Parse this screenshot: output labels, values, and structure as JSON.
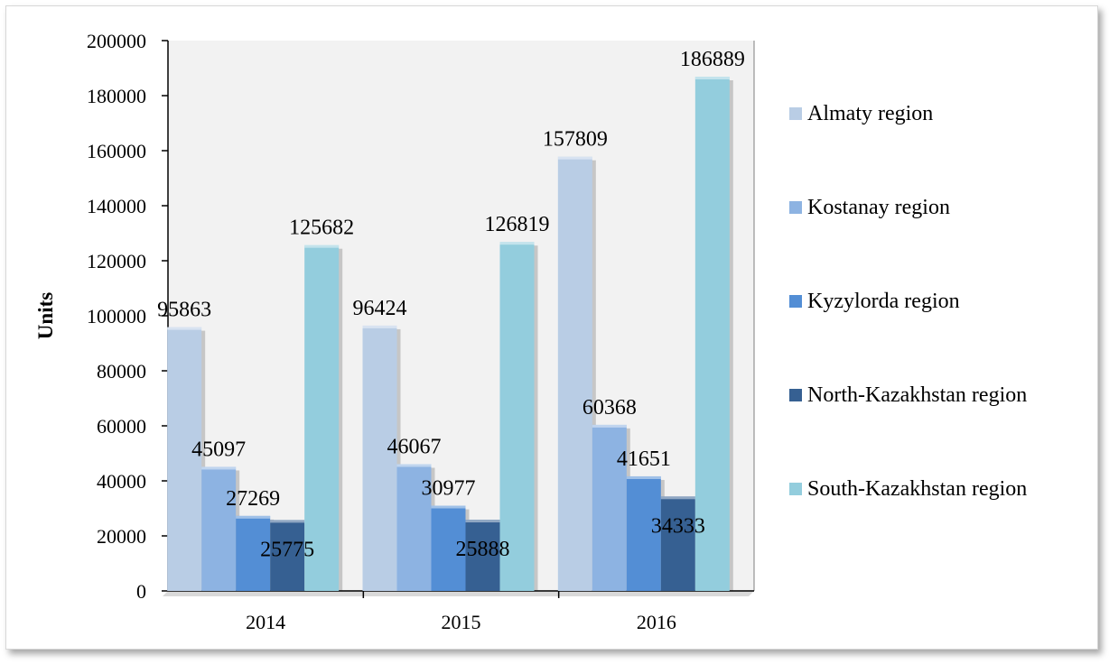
{
  "chart_data": {
    "type": "bar",
    "categories": [
      "2014",
      "2015",
      "2016"
    ],
    "series": [
      {
        "name": "Almaty region",
        "color": "#b9cde5",
        "values": [
          95863,
          96424,
          157809
        ]
      },
      {
        "name": "Kostanay region",
        "color": "#8db3e2",
        "values": [
          45097,
          46067,
          60368
        ]
      },
      {
        "name": "Kyzylorda region",
        "color": "#538ed5",
        "values": [
          27269,
          30977,
          41651
        ]
      },
      {
        "name": "North-Kazakhstan region",
        "color": "#366092",
        "values": [
          25775,
          25888,
          34333
        ]
      },
      {
        "name": "South-Kazakhstan region",
        "color": "#93cddd",
        "values": [
          125682,
          126819,
          186889
        ]
      }
    ],
    "data_labels": [
      [
        "95863",
        "96424",
        "157809"
      ],
      [
        "45097",
        "46067",
        "60368"
      ],
      [
        "27269",
        "30977",
        "41651"
      ],
      [
        "25775",
        "25888",
        "34333"
      ],
      [
        "125682",
        "126819",
        "186889"
      ]
    ],
    "ylabel": "Units",
    "xlabel": "",
    "ylim": [
      0,
      200000
    ],
    "yticks": [
      "0",
      "20000",
      "40000",
      "60000",
      "80000",
      "100000",
      "120000",
      "140000",
      "160000",
      "180000",
      "200000"
    ],
    "grid": false,
    "legend_position": "right",
    "plot_background": "#f2f2f2",
    "style": "3d-column"
  }
}
